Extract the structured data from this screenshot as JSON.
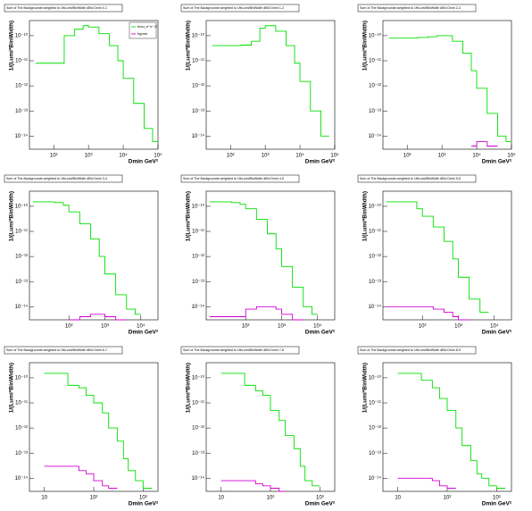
{
  "chart_data": [
    {
      "type": "line",
      "title": "Sum of The Backgrounds weighted to 1fbLumi/BinWidth dEtd Dmin 0-1",
      "x_label": "Dmin GeV²",
      "y_label": "1/(Lumi*BinWidth)",
      "log_x": true,
      "log_y": true,
      "legend": "top-right",
      "x": [
        30,
        60,
        100,
        200,
        400,
        700,
        1000,
        2000,
        4000,
        7000,
        10000,
        20000,
        40000,
        70000
      ],
      "xlim": [
        20,
        100000
      ],
      "xticks": [
        {
          "value": 100,
          "label": "10²"
        },
        {
          "value": 1000,
          "label": "10³"
        },
        {
          "value": 10000,
          "label": "10⁴"
        },
        {
          "value": 100000,
          "label": "10⁵"
        }
      ],
      "ylim": [
        3e-15,
        4e-10
      ],
      "yticks": [
        {
          "value": 1e-14,
          "label": "10⁻¹⁴"
        },
        {
          "value": 1e-13,
          "label": "10⁻¹³"
        },
        {
          "value": 1e-12,
          "label": "10⁻¹²"
        },
        {
          "value": 1e-11,
          "label": "10⁻¹¹"
        },
        {
          "value": 1e-10,
          "label": "10⁻¹⁰"
        }
      ],
      "series": [
        {
          "name": "hmu_e⁺e⁻/Z",
          "color": "#00e000",
          "values": [
            8e-12,
            8e-12,
            8e-12,
            1e-10,
            1.8e-10,
            2.5e-10,
            2.2e-10,
            1.2e-10,
            4e-11,
            1e-11,
            2e-12,
            2e-13,
            2e-14,
            6e-15
          ]
        },
        {
          "name": "hgmm",
          "color": "#d000d0",
          "values": [
            null,
            null,
            null,
            null,
            null,
            null,
            null,
            null,
            null,
            null,
            null,
            null,
            null,
            null
          ]
        }
      ]
    },
    {
      "type": "line",
      "title": "Sum of The Backgrounds weighted to 1fbLumi/BinWidth dEtd Dmin 1-2",
      "x_label": "Dmin GeV²",
      "y_label": "1/(Lumi*BinWidth)",
      "log_x": true,
      "log_y": true,
      "x": [
        30,
        60,
        100,
        200,
        400,
        700,
        1000,
        2000,
        4000,
        7000,
        10000,
        20000,
        40000,
        70000
      ],
      "xlim": [
        20,
        100000
      ],
      "xticks": [
        {
          "value": 100,
          "label": "10²"
        },
        {
          "value": 1000,
          "label": "10³"
        },
        {
          "value": 10000,
          "label": "10⁴"
        },
        {
          "value": 100000,
          "label": "10⁵"
        }
      ],
      "ylim": [
        3e-15,
        4e-10
      ],
      "yticks": [
        {
          "value": 1e-14,
          "label": "10⁻¹⁴"
        },
        {
          "value": 1e-13,
          "label": "10⁻¹³"
        },
        {
          "value": 1e-12,
          "label": "10⁻¹²"
        },
        {
          "value": 1e-11,
          "label": "10⁻¹¹"
        },
        {
          "value": 1e-10,
          "label": "10⁻¹⁰"
        }
      ],
      "series": [
        {
          "color": "#00e000",
          "values": [
            4e-11,
            4e-11,
            4e-11,
            4.2e-11,
            6e-11,
            2e-10,
            2.5e-10,
            1.5e-10,
            4e-11,
            8e-12,
            1.5e-12,
            1e-13,
            1e-14,
            null
          ]
        },
        {
          "color": "#d000d0",
          "values": [
            null,
            null,
            null,
            null,
            null,
            null,
            null,
            null,
            null,
            null,
            null,
            null,
            null,
            null
          ]
        }
      ]
    },
    {
      "type": "line",
      "title": "Sum of The Backgrounds weighted to 1fbLumi/BinWidth dEtd Dmin 2-3",
      "x_label": "Dmin GeV²",
      "y_label": "1/(Lumi*BinWidth)",
      "log_x": true,
      "log_y": true,
      "x": [
        30,
        60,
        100,
        200,
        400,
        700,
        1000,
        2000,
        4000,
        7000,
        10000,
        20000,
        40000,
        70000
      ],
      "xlim": [
        20,
        100000
      ],
      "xticks": [
        {
          "value": 100,
          "label": "10²"
        },
        {
          "value": 1000,
          "label": "10³"
        },
        {
          "value": 10000,
          "label": "10⁴"
        },
        {
          "value": 100000,
          "label": "10⁵"
        }
      ],
      "ylim": [
        3e-15,
        4e-10
      ],
      "yticks": [
        {
          "value": 1e-14,
          "label": "10⁻¹⁴"
        },
        {
          "value": 1e-13,
          "label": "10⁻¹³"
        },
        {
          "value": 1e-12,
          "label": "10⁻¹²"
        },
        {
          "value": 1e-11,
          "label": "10⁻¹¹"
        },
        {
          "value": 1e-10,
          "label": "10⁻¹⁰"
        }
      ],
      "series": [
        {
          "color": "#00e000",
          "values": [
            8e-11,
            8e-11,
            8e-11,
            8.5e-11,
            9e-11,
            1e-10,
            1e-10,
            6e-11,
            2e-11,
            4e-12,
            8e-13,
            8e-14,
            1e-14,
            6e-15
          ]
        },
        {
          "color": "#d000d0",
          "values": [
            null,
            null,
            null,
            null,
            null,
            null,
            null,
            null,
            null,
            4e-15,
            6e-15,
            4e-15,
            null,
            null
          ]
        }
      ]
    },
    {
      "type": "line",
      "title": "Sum of The Backgrounds weighted to 1fbLumi/BinWidth dEtd Dmin 3-4",
      "x_label": "Dmin GeV²",
      "y_label": "1/(Lumi*BinWidth)",
      "log_x": true,
      "log_y": true,
      "x": [
        10,
        20,
        40,
        70,
        100,
        200,
        400,
        700,
        1000,
        2000,
        4000,
        7000,
        10000,
        20000
      ],
      "xlim": [
        8,
        30000
      ],
      "xticks": [
        {
          "value": 100,
          "label": "10²"
        },
        {
          "value": 1000,
          "label": "10³"
        },
        {
          "value": 10000,
          "label": "10⁴"
        }
      ],
      "ylim": [
        3e-15,
        4e-10
      ],
      "yticks": [
        {
          "value": 1e-14,
          "label": "10⁻¹⁴"
        },
        {
          "value": 1e-13,
          "label": "10⁻¹³"
        },
        {
          "value": 1e-12,
          "label": "10⁻¹²"
        },
        {
          "value": 1e-11,
          "label": "10⁻¹¹"
        },
        {
          "value": 1e-10,
          "label": "10⁻¹⁰"
        }
      ],
      "series": [
        {
          "color": "#00e000",
          "values": [
            1.5e-10,
            1.5e-10,
            1.4e-10,
            1.1e-10,
            6e-11,
            2e-11,
            5e-12,
            1e-12,
            2e-13,
            3e-14,
            8e-15,
            5e-15,
            null,
            null
          ]
        },
        {
          "color": "#d000d0",
          "values": [
            null,
            null,
            null,
            null,
            3e-15,
            4e-15,
            5e-15,
            5e-15,
            4e-15,
            3e-15,
            null,
            null,
            null,
            null
          ]
        }
      ]
    },
    {
      "type": "line",
      "title": "Sum of The Backgrounds weighted to 1fbLumi/BinWidth dEtd Dmin 4-5",
      "x_label": "Dmin GeV²",
      "y_label": "1/(Lumi*BinWidth)",
      "log_x": true,
      "log_y": true,
      "x": [
        10,
        20,
        40,
        70,
        100,
        200,
        400,
        700,
        1000,
        2000,
        4000,
        7000,
        10000,
        20000
      ],
      "xlim": [
        8,
        30000
      ],
      "xticks": [
        {
          "value": 100,
          "label": "10²"
        },
        {
          "value": 1000,
          "label": "10³"
        },
        {
          "value": 10000,
          "label": "10⁴"
        }
      ],
      "ylim": [
        3e-15,
        4e-10
      ],
      "yticks": [
        {
          "value": 1e-14,
          "label": "10⁻¹⁴"
        },
        {
          "value": 1e-13,
          "label": "10⁻¹³"
        },
        {
          "value": 1e-12,
          "label": "10⁻¹²"
        },
        {
          "value": 1e-11,
          "label": "10⁻¹¹"
        },
        {
          "value": 1e-10,
          "label": "10⁻¹⁰"
        }
      ],
      "series": [
        {
          "color": "#00e000",
          "values": [
            1.5e-10,
            1.5e-10,
            1.4e-10,
            1.2e-10,
            8e-11,
            3e-11,
            8e-12,
            2e-12,
            4e-13,
            6e-14,
            1e-14,
            5e-15,
            null,
            null
          ]
        },
        {
          "color": "#d000d0",
          "values": [
            4e-15,
            4e-15,
            4e-15,
            4e-15,
            8e-15,
            1e-14,
            1e-14,
            8e-15,
            5e-15,
            3e-15,
            null,
            null,
            null,
            null
          ]
        }
      ]
    },
    {
      "type": "line",
      "title": "Sum of The Backgrounds weighted to 1fbLumi/BinWidth dEtd Dmin 5-6",
      "x_label": "Dmin GeV²",
      "y_label": "1/(Lumi*BinWidth)",
      "log_x": true,
      "log_y": true,
      "x": [
        10,
        20,
        40,
        70,
        100,
        200,
        400,
        700,
        1000,
        2000,
        4000,
        7000,
        10000,
        20000
      ],
      "xlim": [
        8,
        30000
      ],
      "xticks": [
        {
          "value": 100,
          "label": "10²"
        },
        {
          "value": 1000,
          "label": "10³"
        },
        {
          "value": 10000,
          "label": "10⁴"
        }
      ],
      "ylim": [
        3e-15,
        4e-10
      ],
      "yticks": [
        {
          "value": 1e-14,
          "label": "10⁻¹⁴"
        },
        {
          "value": 1e-13,
          "label": "10⁻¹³"
        },
        {
          "value": 1e-12,
          "label": "10⁻¹²"
        },
        {
          "value": 1e-11,
          "label": "10⁻¹¹"
        },
        {
          "value": 1e-10,
          "label": "10⁻¹⁰"
        }
      ],
      "series": [
        {
          "color": "#00e000",
          "values": [
            1.5e-10,
            1.5e-10,
            1.5e-10,
            8e-11,
            4e-11,
            1.5e-11,
            4e-12,
            8e-13,
            1.5e-13,
            2e-14,
            6e-15,
            null,
            null,
            null
          ]
        },
        {
          "color": "#d000d0",
          "values": [
            1e-14,
            1e-14,
            1e-14,
            1e-14,
            1e-14,
            8e-15,
            6e-15,
            4e-15,
            3e-15,
            null,
            null,
            null,
            null,
            null
          ]
        }
      ]
    },
    {
      "type": "line",
      "title": "Sum of The Backgrounds weighted to 1fbLumi/BinWidth dEtd Dmin 6-7",
      "x_label": "Dmin GeV²",
      "y_label": "1/(Lumi*BinWidth)",
      "log_x": true,
      "log_y": true,
      "x": [
        10,
        20,
        30,
        50,
        70,
        100,
        150,
        200,
        300,
        400,
        500,
        700,
        1000,
        1500
      ],
      "xlim": [
        5,
        2000
      ],
      "xticks": [
        {
          "value": 10,
          "label": "10"
        },
        {
          "value": 100,
          "label": "10²"
        },
        {
          "value": 1000,
          "label": "10³"
        }
      ],
      "ylim": [
        3e-15,
        4e-10
      ],
      "yticks": [
        {
          "value": 1e-14,
          "label": "10⁻¹⁴"
        },
        {
          "value": 1e-13,
          "label": "10⁻¹³"
        },
        {
          "value": 1e-12,
          "label": "10⁻¹²"
        },
        {
          "value": 1e-11,
          "label": "10⁻¹¹"
        },
        {
          "value": 1e-10,
          "label": "10⁻¹⁰"
        }
      ],
      "series": [
        {
          "color": "#00e000",
          "values": [
            1.5e-10,
            1.5e-10,
            5e-11,
            4e-11,
            2e-11,
            1e-11,
            4e-12,
            1e-12,
            3e-13,
            6e-14,
            2e-14,
            8e-15,
            4e-15,
            null
          ]
        },
        {
          "color": "#d000d0",
          "values": [
            3e-14,
            3e-14,
            3e-14,
            2e-14,
            1.5e-14,
            8e-15,
            5e-15,
            4e-15,
            null,
            null,
            null,
            null,
            null,
            null
          ]
        }
      ]
    },
    {
      "type": "line",
      "title": "Sum of The Backgrounds weighted to 1fbLumi/BinWidth dEtd Dmin 7-8",
      "x_label": "Dmin GeV²",
      "y_label": "1/(Lumi*BinWidth)",
      "log_x": true,
      "log_y": true,
      "x": [
        10,
        20,
        30,
        50,
        70,
        100,
        150,
        200,
        300,
        400,
        500,
        700,
        1000,
        1500
      ],
      "xlim": [
        5,
        2000
      ],
      "xticks": [
        {
          "value": 10,
          "label": "10"
        },
        {
          "value": 100,
          "label": "10²"
        },
        {
          "value": 1000,
          "label": "10³"
        }
      ],
      "ylim": [
        3e-15,
        4e-10
      ],
      "yticks": [
        {
          "value": 1e-14,
          "label": "10⁻¹⁴"
        },
        {
          "value": 1e-13,
          "label": "10⁻¹³"
        },
        {
          "value": 1e-12,
          "label": "10⁻¹²"
        },
        {
          "value": 1e-11,
          "label": "10⁻¹¹"
        },
        {
          "value": 1e-10,
          "label": "10⁻¹⁰"
        }
      ],
      "series": [
        {
          "color": "#00e000",
          "values": [
            1.5e-10,
            1.5e-10,
            5e-11,
            3e-11,
            2e-11,
            5e-12,
            2e-12,
            5e-13,
            1.5e-13,
            3e-14,
            8e-15,
            5e-15,
            null,
            null
          ]
        },
        {
          "color": "#d000d0",
          "values": [
            8e-15,
            8e-15,
            8e-15,
            6e-15,
            5e-15,
            4e-15,
            3e-15,
            null,
            null,
            null,
            null,
            null,
            null,
            null
          ]
        }
      ]
    },
    {
      "type": "line",
      "title": "Sum of The Backgrounds weighted to 1fbLumi/BinWidth dEtd Dmin 8-9",
      "x_label": "Dmin GeV²",
      "y_label": "1/(Lumi*BinWidth)",
      "log_x": true,
      "log_y": true,
      "x": [
        10,
        20,
        30,
        50,
        70,
        100,
        150,
        200,
        300,
        400,
        500,
        700,
        1000,
        1500
      ],
      "xlim": [
        5,
        2000
      ],
      "xticks": [
        {
          "value": 10,
          "label": "10"
        },
        {
          "value": 100,
          "label": "10²"
        },
        {
          "value": 1000,
          "label": "10³"
        }
      ],
      "ylim": [
        3e-15,
        4e-10
      ],
      "yticks": [
        {
          "value": 1e-14,
          "label": "10⁻¹⁴"
        },
        {
          "value": 1e-13,
          "label": "10⁻¹³"
        },
        {
          "value": 1e-12,
          "label": "10⁻¹²"
        },
        {
          "value": 1e-11,
          "label": "10⁻¹¹"
        },
        {
          "value": 1e-10,
          "label": "10⁻¹⁰"
        }
      ],
      "series": [
        {
          "color": "#00e000",
          "values": [
            1.5e-10,
            1.5e-10,
            8e-11,
            4e-11,
            1.5e-11,
            5e-12,
            1e-12,
            2e-13,
            5e-14,
            1.5e-14,
            1e-14,
            5e-15,
            4e-15,
            null
          ]
        },
        {
          "color": "#d000d0",
          "values": [
            1e-14,
            1e-14,
            1e-14,
            8e-15,
            5e-15,
            4e-15,
            null,
            null,
            null,
            null,
            null,
            null,
            null,
            null
          ]
        }
      ]
    }
  ]
}
